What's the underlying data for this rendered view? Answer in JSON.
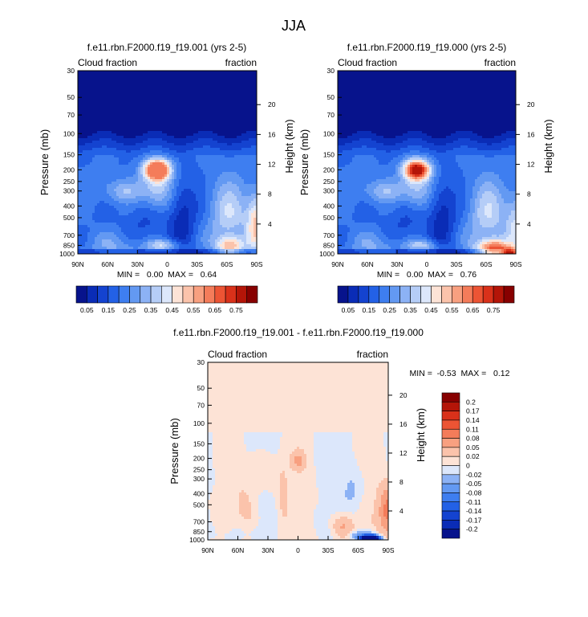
{
  "page_title": "JJA",
  "chart_data": [
    {
      "type": "heatmap",
      "panel": "left",
      "title": "f.e11.rbn.F2000.f19_f19.001 (yrs 2-5)",
      "left_label": "Cloud fraction",
      "right_label": "fraction",
      "ylabel": "Pressure (mb)",
      "ylabel_right": "Height (km)",
      "x_ticks": [
        "90N",
        "60N",
        "30N",
        "0",
        "30S",
        "60S",
        "90S"
      ],
      "x_values": [
        90,
        60,
        30,
        0,
        -30,
        -60,
        -90
      ],
      "p_ticks": [
        "30",
        "50",
        "70",
        "100",
        "150",
        "200",
        "250",
        "300",
        "400",
        "500",
        "700",
        "850",
        "1000"
      ],
      "p_values": [
        30,
        50,
        70,
        100,
        150,
        200,
        250,
        300,
        400,
        500,
        700,
        850,
        1000
      ],
      "height_ticks": [
        "20",
        "16",
        "12",
        "8",
        "4"
      ],
      "height_values": [
        20,
        16,
        12,
        8,
        4
      ],
      "ylim": [
        1000,
        30
      ],
      "stats": "MIN =   0.00  MAX =   0.64",
      "min": 0.0,
      "max": 0.64,
      "colorbar_labels": [
        "0.05",
        "0.15",
        "0.25",
        "0.35",
        "0.45",
        "0.55",
        "0.65",
        "0.75"
      ],
      "levels": [
        0.05,
        0.1,
        0.15,
        0.2,
        0.25,
        0.3,
        0.35,
        0.4,
        0.45,
        0.5,
        0.55,
        0.6,
        0.65,
        0.7,
        0.75
      ],
      "colors": [
        "#07138c",
        "#0a2cb6",
        "#1443d0",
        "#2361e6",
        "#3e7ef0",
        "#6399f2",
        "#8cb2f5",
        "#b5cdf7",
        "#dce7fb",
        "#fde3d6",
        "#fbc3ab",
        "#f8a080",
        "#f47c5a",
        "#ec5434",
        "#d9311a",
        "#b41508",
        "#870000"
      ],
      "features": [
        {
          "lat": 10,
          "p": 200,
          "w": 9,
          "h": 0.13,
          "amp": 0.6
        },
        {
          "lat": 10,
          "p": 300,
          "w": 12,
          "h": 0.32,
          "amp": 0.22
        },
        {
          "lat": 5,
          "p": 850,
          "w": 12,
          "h": 0.08,
          "amp": 0.2
        },
        {
          "lat": 40,
          "p": 300,
          "w": 12,
          "h": 0.15,
          "amp": 0.12
        },
        {
          "lat": -62,
          "p": 480,
          "w": 15,
          "h": 0.5,
          "amp": 0.18
        },
        {
          "lat": -63,
          "p": 850,
          "w": 10,
          "h": 0.12,
          "amp": 0.28
        },
        {
          "lat": -90,
          "p": 550,
          "w": 7,
          "h": 0.4,
          "amp": 0.3
        },
        {
          "lat": 62,
          "p": 300,
          "w": 12,
          "h": 0.2,
          "amp": 0.06
        },
        {
          "lat": 50,
          "p": 880,
          "w": 20,
          "h": 0.2,
          "amp": 0.1
        },
        {
          "lat": 20,
          "p": 500,
          "w": 15,
          "h": 0.4,
          "amp": -0.08
        },
        {
          "lat": -15,
          "p": 450,
          "w": 10,
          "h": 0.45,
          "amp": -0.15
        }
      ]
    },
    {
      "type": "heatmap",
      "panel": "right",
      "title": "f.e11.rbn.F2000.f19_f19.000 (yrs 2-5)",
      "left_label": "Cloud fraction",
      "right_label": "fraction",
      "ylabel": "Pressure (mb)",
      "ylabel_right": "Height (km)",
      "x_ticks": [
        "90N",
        "60N",
        "30N",
        "0",
        "30S",
        "60S",
        "90S"
      ],
      "x_values": [
        90,
        60,
        30,
        0,
        -30,
        -60,
        -90
      ],
      "p_ticks": [
        "30",
        "50",
        "70",
        "100",
        "150",
        "200",
        "250",
        "300",
        "400",
        "500",
        "700",
        "850",
        "1000"
      ],
      "p_values": [
        30,
        50,
        70,
        100,
        150,
        200,
        250,
        300,
        400,
        500,
        700,
        850,
        1000
      ],
      "height_ticks": [
        "20",
        "16",
        "12",
        "8",
        "4"
      ],
      "height_values": [
        20,
        16,
        12,
        8,
        4
      ],
      "ylim": [
        1000,
        30
      ],
      "stats": "MIN =   0.00  MAX =   0.76",
      "min": 0.0,
      "max": 0.76,
      "colorbar_labels": [
        "0.05",
        "0.15",
        "0.25",
        "0.35",
        "0.45",
        "0.55",
        "0.65",
        "0.75"
      ],
      "levels": [
        0.05,
        0.1,
        0.15,
        0.2,
        0.25,
        0.3,
        0.35,
        0.4,
        0.45,
        0.5,
        0.55,
        0.6,
        0.65,
        0.7,
        0.75
      ],
      "colors": [
        "#07138c",
        "#0a2cb6",
        "#1443d0",
        "#2361e6",
        "#3e7ef0",
        "#6399f2",
        "#8cb2f5",
        "#b5cdf7",
        "#dce7fb",
        "#fde3d6",
        "#fbc3ab",
        "#f8a080",
        "#f47c5a",
        "#ec5434",
        "#d9311a",
        "#b41508",
        "#870000"
      ],
      "features": [
        {
          "lat": 10,
          "p": 200,
          "w": 9,
          "h": 0.13,
          "amp": 0.58
        },
        {
          "lat": 10,
          "p": 300,
          "w": 12,
          "h": 0.32,
          "amp": 0.2
        },
        {
          "lat": 5,
          "p": 850,
          "w": 12,
          "h": 0.08,
          "amp": 0.18
        },
        {
          "lat": 40,
          "p": 300,
          "w": 12,
          "h": 0.15,
          "amp": 0.12
        },
        {
          "lat": -62,
          "p": 480,
          "w": 15,
          "h": 0.5,
          "amp": 0.18
        },
        {
          "lat": -68,
          "p": 900,
          "w": 12,
          "h": 0.12,
          "amp": 0.42
        },
        {
          "lat": -85,
          "p": 980,
          "w": 6,
          "h": 0.06,
          "amp": 0.55
        },
        {
          "lat": -90,
          "p": 550,
          "w": 7,
          "h": 0.4,
          "amp": 0.18
        },
        {
          "lat": 62,
          "p": 300,
          "w": 12,
          "h": 0.2,
          "amp": 0.06
        },
        {
          "lat": 50,
          "p": 880,
          "w": 20,
          "h": 0.2,
          "amp": 0.1
        },
        {
          "lat": 20,
          "p": 500,
          "w": 15,
          "h": 0.4,
          "amp": -0.08
        },
        {
          "lat": -15,
          "p": 450,
          "w": 10,
          "h": 0.45,
          "amp": -0.15
        }
      ]
    },
    {
      "type": "heatmap",
      "panel": "difference",
      "title": "f.e11.rbn.F2000.f19_f19.001 - f.e11.rbn.F2000.f19_f19.000",
      "left_label": "Cloud fraction",
      "right_label": "fraction",
      "ylabel": "Pressure (mb)",
      "ylabel_right": "Height (km)",
      "x_ticks": [
        "90N",
        "60N",
        "30N",
        "0",
        "30S",
        "60S",
        "90S"
      ],
      "x_values": [
        90,
        60,
        30,
        0,
        -30,
        -60,
        -90
      ],
      "p_ticks": [
        "30",
        "50",
        "70",
        "100",
        "150",
        "200",
        "250",
        "300",
        "400",
        "500",
        "700",
        "850",
        "1000"
      ],
      "p_values": [
        30,
        50,
        70,
        100,
        150,
        200,
        250,
        300,
        400,
        500,
        700,
        850,
        1000
      ],
      "height_ticks": [
        "20",
        "16",
        "12",
        "8",
        "4"
      ],
      "height_values": [
        20,
        16,
        12,
        8,
        4
      ],
      "ylim": [
        1000,
        30
      ],
      "stats": "MIN =  -0.53  MAX =   0.12",
      "min": -0.53,
      "max": 0.12,
      "colorbar_labels": [
        "0.2",
        "0.17",
        "0.14",
        "0.11",
        "0.08",
        "0.05",
        "0.02",
        "0",
        "-0.02",
        "-0.05",
        "-0.08",
        "-0.11",
        "-0.14",
        "-0.17",
        "-0.2"
      ],
      "levels": [
        -0.2,
        -0.17,
        -0.14,
        -0.11,
        -0.08,
        -0.05,
        -0.02,
        0,
        0.02,
        0.05,
        0.08,
        0.11,
        0.14,
        0.17,
        0.2
      ],
      "colors": [
        "#07138c",
        "#0a2cb6",
        "#1443d0",
        "#2361e6",
        "#3e7ef0",
        "#6399f2",
        "#8cb2f5",
        "#dce7fb",
        "#fde3d6",
        "#fbc3ab",
        "#f8a080",
        "#f47c5a",
        "#ec5434",
        "#d9311a",
        "#b41508",
        "#870000"
      ],
      "features": [
        {
          "lat": 0,
          "p": 210,
          "w": 5,
          "h": 0.12,
          "amp": 0.05
        },
        {
          "lat": 15,
          "p": 400,
          "w": 4,
          "h": 0.5,
          "amp": 0.025
        },
        {
          "lat": -90,
          "p": 560,
          "w": 7,
          "h": 0.35,
          "amp": 0.1
        },
        {
          "lat": -55,
          "p": 380,
          "w": 7,
          "h": 0.3,
          "amp": -0.03
        },
        {
          "lat": -45,
          "p": 800,
          "w": 8,
          "h": 0.2,
          "amp": 0.06
        },
        {
          "lat": -72,
          "p": 985,
          "w": 6,
          "h": 0.05,
          "amp": -0.5
        },
        {
          "lat": -62,
          "p": 920,
          "w": 10,
          "h": 0.08,
          "amp": -0.06
        },
        {
          "lat": 60,
          "p": 900,
          "w": 10,
          "h": 0.15,
          "amp": -0.025
        },
        {
          "lat": 35,
          "p": 260,
          "w": 10,
          "h": 0.3,
          "amp": 0.025
        },
        {
          "lat": 50,
          "p": 620,
          "w": 8,
          "h": 0.5,
          "amp": 0.025
        }
      ]
    }
  ]
}
